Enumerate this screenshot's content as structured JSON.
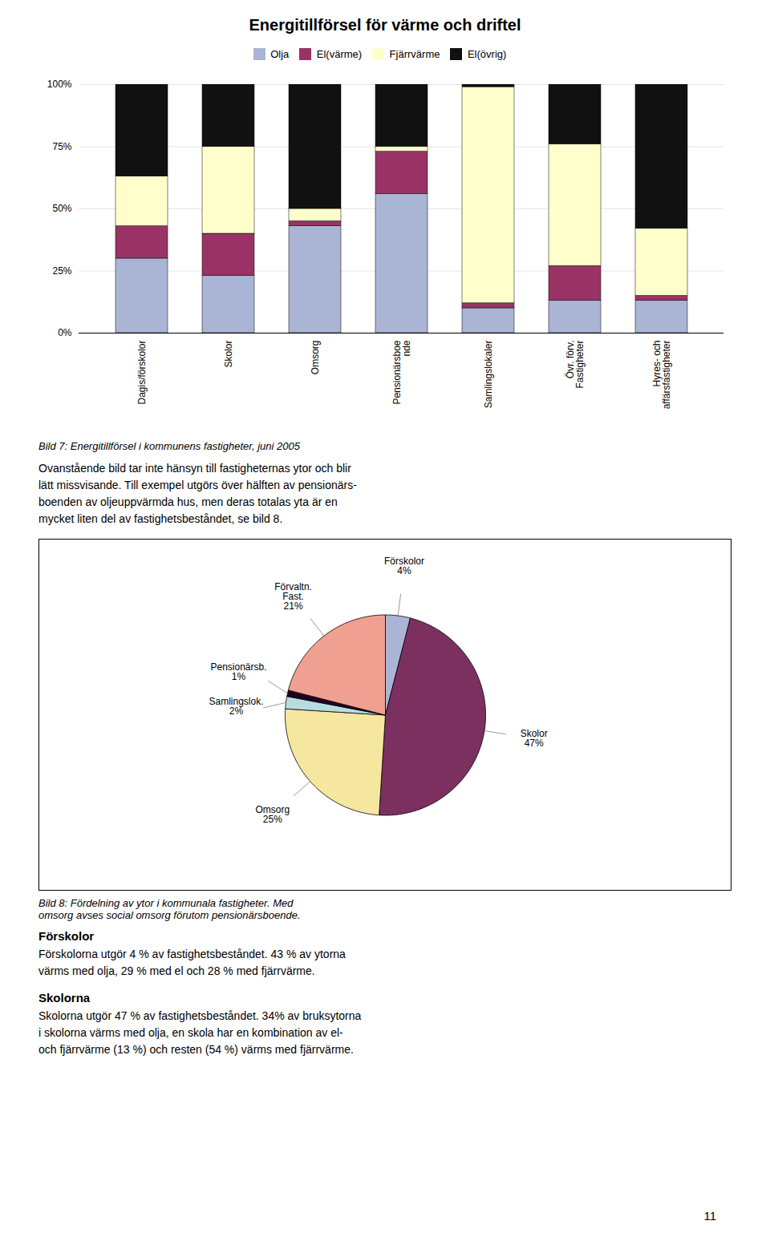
{
  "chart_data": [
    {
      "type": "bar",
      "stacked": true,
      "title": "Energitillförsel för värme och driftel",
      "categories": [
        "Dagis/förskolor",
        "Skolor",
        "Omsorg",
        "Pensionärsboe\nnde",
        "Samlingslokaler",
        "Övr. förv.\nFastigheter",
        "Hyres- och\naffärsfastigheter"
      ],
      "series": [
        {
          "name": "Olja",
          "color": "#aab4d4",
          "values": [
            0.3,
            0.23,
            0.43,
            0.56,
            0.1,
            0.13,
            0.13
          ]
        },
        {
          "name": "El(värme)",
          "color": "#993366",
          "values": [
            0.13,
            0.17,
            0.02,
            0.17,
            0.02,
            0.14,
            0.02
          ]
        },
        {
          "name": "Fjärrvärme",
          "color": "#ffffcc",
          "values": [
            0.2,
            0.35,
            0.05,
            0.02,
            0.87,
            0.49,
            0.27
          ]
        },
        {
          "name": "El(övrig)",
          "color": "#111111",
          "values": [
            0.37,
            0.25,
            0.5,
            0.25,
            0.01,
            0.24,
            0.58
          ]
        }
      ],
      "ylim": [
        0,
        1
      ],
      "yticks": [
        {
          "value": 0,
          "label": "0%"
        },
        {
          "value": 0.25,
          "label": "25%"
        },
        {
          "value": 0.5,
          "label": "50%"
        },
        {
          "value": 0.75,
          "label": "75%"
        },
        {
          "value": 1,
          "label": "100%"
        }
      ],
      "grid": true,
      "legend": "upper center",
      "caption": "Bild 7: Energitillförsel i kommunens fastigheter, juni 2005",
      "annotations": [
        "Ovanstående bild tar inte hänsyn till fastigheternas ytor och blir\nlätt missvisande. Till exempel utgörs över hälften av pensionärs-\nboenden av oljeuppvärmda hus, men deras totalas yta är en\nmycket liten del av fastighetsbeståndet, se bild 8."
      ]
    },
    {
      "type": "pie",
      "categories": [
        "Förskolor",
        "Skolor",
        "Omsorg",
        "Samlingslok.",
        "Pensionärsb.",
        "Förvaltn.\nFast."
      ],
      "values": [
        4,
        47,
        25,
        2,
        1,
        21
      ],
      "value_labels": [
        "4%",
        "47%",
        "25%",
        "2%",
        "1%",
        "21%"
      ],
      "data_labels": true,
      "colors": [
        "#aab4d4",
        "#7b3060",
        "#f5e6a0",
        "#b8dde0",
        "#220022",
        "#f0a090"
      ],
      "caption": "Bild 8: Fördelning av ytor i kommunala fastigheter. Med\nomsorg avses social omsorg förutom pensionärsboende.",
      "annotations": [
        "Förskolor",
        "Förskolorna utgör 4 % av fastighetsbeståndet. 43 % av ytorna\nvärms med olja, 29 % med el och 28 % med fjärrvärme.",
        "Skolorna",
        "Skolorna utgör 47 % av fastighetsbeståndet. 34% av bruksytorna\ni skolorna värms med olja, en skola har en kombination av el-\noch fjärrvärme (13 %) och resten (54 %) värms med fjärrvärme.",
        "11"
      ]
    }
  ]
}
